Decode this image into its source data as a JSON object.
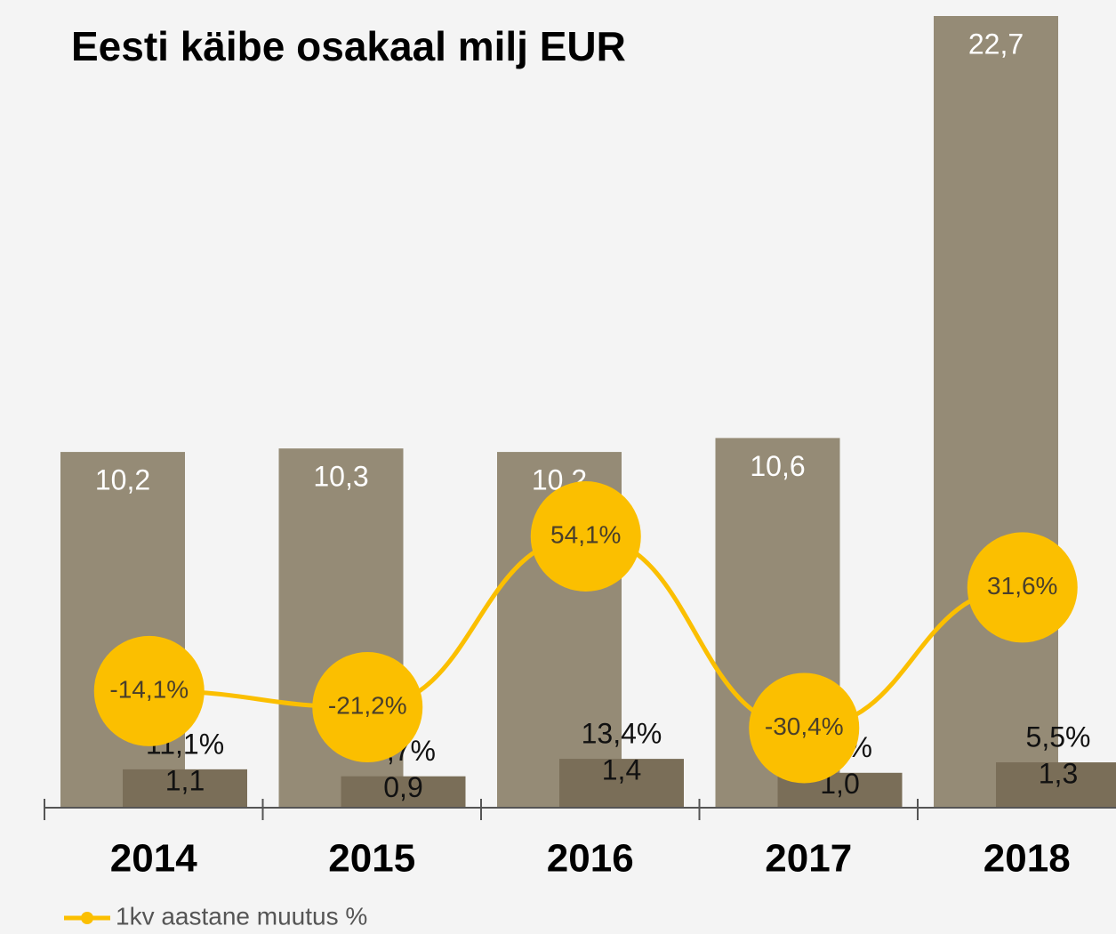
{
  "chart_data": {
    "type": "bar",
    "title": "Eesti käibe osakaal milj EUR",
    "categories": [
      "2014",
      "2015",
      "2016",
      "2017",
      "2018"
    ],
    "ylim": [
      0,
      22.7
    ],
    "y2lim": [
      -65.5,
      283.5
    ],
    "series": [
      {
        "color": "#958b76",
        "values": [
          10.2,
          10.3,
          10.2,
          10.6,
          22.7
        ],
        "value_labels": [
          "10,2",
          "10,3",
          "10,2",
          "10,6",
          "22,7"
        ]
      },
      {
        "color": "#7a6e58",
        "values": [
          1.1,
          0.9,
          1.4,
          1.0,
          1.3
        ],
        "value_labels": [
          "1,1",
          "0,9",
          "1,4",
          "1,0",
          "1,3"
        ],
        "share": [
          11.1,
          8.7,
          13.4,
          9.1,
          5.5
        ],
        "share_labels": [
          "11,1%",
          "8,7%",
          "13,4%",
          "9,1%",
          "5,5%"
        ]
      },
      {
        "name": "1kv aastane muutus %",
        "type": "line",
        "axis": "y2",
        "color": "#fbbf00",
        "values": [
          -14.1,
          -21.2,
          54.1,
          -30.4,
          31.6
        ],
        "value_labels": [
          "-14,1%",
          "-21,2%",
          "54,1%",
          "-30,4%",
          "31,6%"
        ]
      }
    ]
  }
}
